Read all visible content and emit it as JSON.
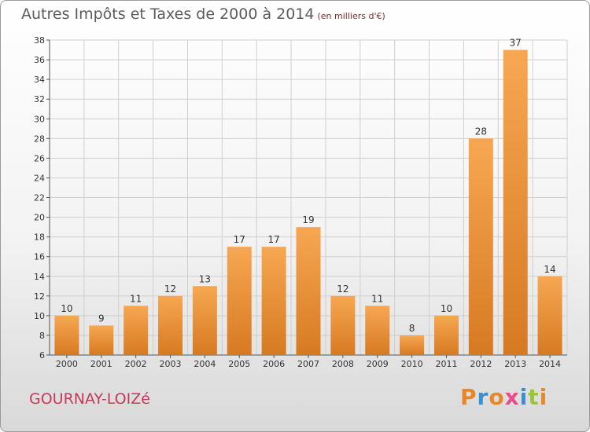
{
  "header": {
    "title": "Autres Impôts et Taxes de 2000 à 2014",
    "subtitle": "(en milliers d'€)"
  },
  "footer": {
    "commune": "GOURNAY-LOIZé",
    "logo_letters": [
      "P",
      "r",
      "o",
      "x",
      "i",
      "t",
      "i"
    ],
    "logo_colors": [
      "#e8862a",
      "#3a8fd0",
      "#e8862a",
      "#e84a8a",
      "#3a8fd0",
      "#9ac43a",
      "#e8862a"
    ]
  },
  "colors": {
    "bar_light": "#f7a752",
    "bar_dark": "#d67a22",
    "grid": "#cfcfcf"
  },
  "chart_data": {
    "type": "bar",
    "title": "Autres Impôts et Taxes de 2000 à 2014",
    "subtitle": "(en milliers d'€)",
    "categories": [
      "2000",
      "2001",
      "2002",
      "2003",
      "2004",
      "2005",
      "2006",
      "2007",
      "2008",
      "2009",
      "2010",
      "2011",
      "2012",
      "2013",
      "2014"
    ],
    "values": [
      10,
      9,
      11,
      12,
      13,
      17,
      17,
      19,
      12,
      11,
      8,
      10,
      28,
      37,
      14
    ],
    "ylim": [
      6,
      38
    ],
    "yticks": [
      6,
      8,
      10,
      12,
      14,
      16,
      18,
      20,
      22,
      24,
      26,
      28,
      30,
      32,
      34,
      36,
      38
    ],
    "grid": true
  }
}
